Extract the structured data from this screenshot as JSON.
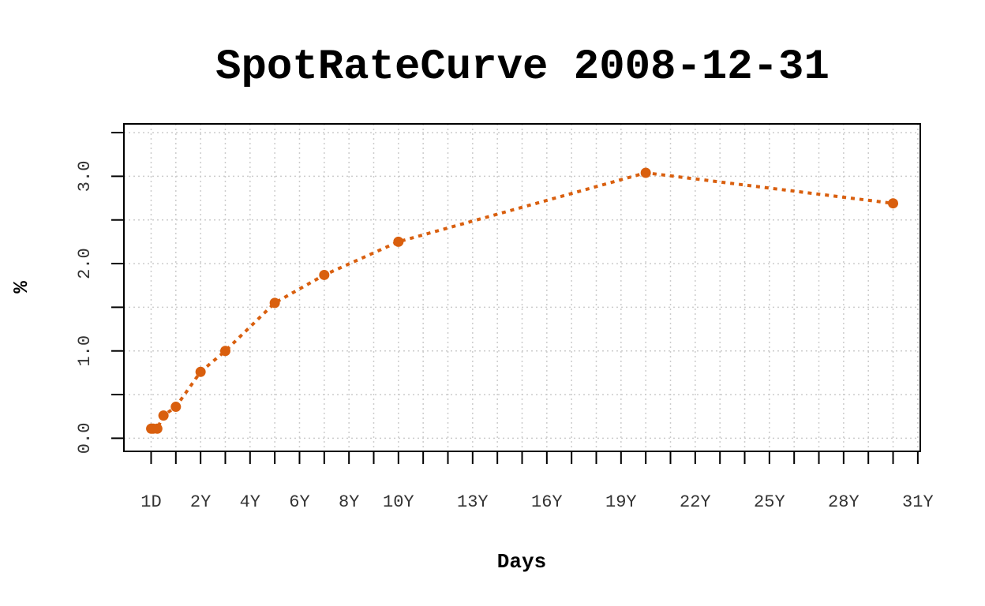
{
  "chart_data": {
    "type": "line",
    "title": "SpotRateCurve 2008-12-31",
    "xlabel": "Days",
    "ylabel": "%",
    "x_tick_labels": [
      {
        "x": 0,
        "label": "1D"
      },
      {
        "x": 2,
        "label": "2Y"
      },
      {
        "x": 4,
        "label": "4Y"
      },
      {
        "x": 6,
        "label": "6Y"
      },
      {
        "x": 8,
        "label": "8Y"
      },
      {
        "x": 10,
        "label": "10Y"
      },
      {
        "x": 13,
        "label": "13Y"
      },
      {
        "x": 16,
        "label": "16Y"
      },
      {
        "x": 19,
        "label": "19Y"
      },
      {
        "x": 22,
        "label": "22Y"
      },
      {
        "x": 25,
        "label": "25Y"
      },
      {
        "x": 28,
        "label": "28Y"
      },
      {
        "x": 31,
        "label": "31Y"
      }
    ],
    "x_minor_ticks": [
      0,
      1,
      2,
      3,
      4,
      5,
      6,
      7,
      8,
      9,
      10,
      11,
      12,
      13,
      14,
      15,
      16,
      17,
      18,
      19,
      20,
      21,
      22,
      23,
      24,
      25,
      26,
      27,
      28,
      29,
      30,
      31
    ],
    "y_ticks": [
      0.0,
      1.0,
      2.0,
      3.0
    ],
    "y_tick_labels": [
      "0.0",
      "1.0",
      "2.0",
      "3.0"
    ],
    "y_minor_ticks": [
      0.0,
      0.5,
      1.0,
      1.5,
      2.0,
      2.5,
      3.0,
      3.5
    ],
    "xlim": [
      -1.1,
      31.1
    ],
    "ylim": [
      -0.15,
      3.6
    ],
    "grid": true,
    "color": "#d95f0e",
    "series": [
      {
        "x": [
          0.003,
          0.08,
          0.25,
          0.5,
          1,
          2,
          3,
          5,
          7,
          10,
          20,
          30
        ],
        "values": [
          0.11,
          0.11,
          0.11,
          0.26,
          0.36,
          0.76,
          1.0,
          1.55,
          1.87,
          2.25,
          3.04,
          2.69
        ]
      }
    ]
  }
}
